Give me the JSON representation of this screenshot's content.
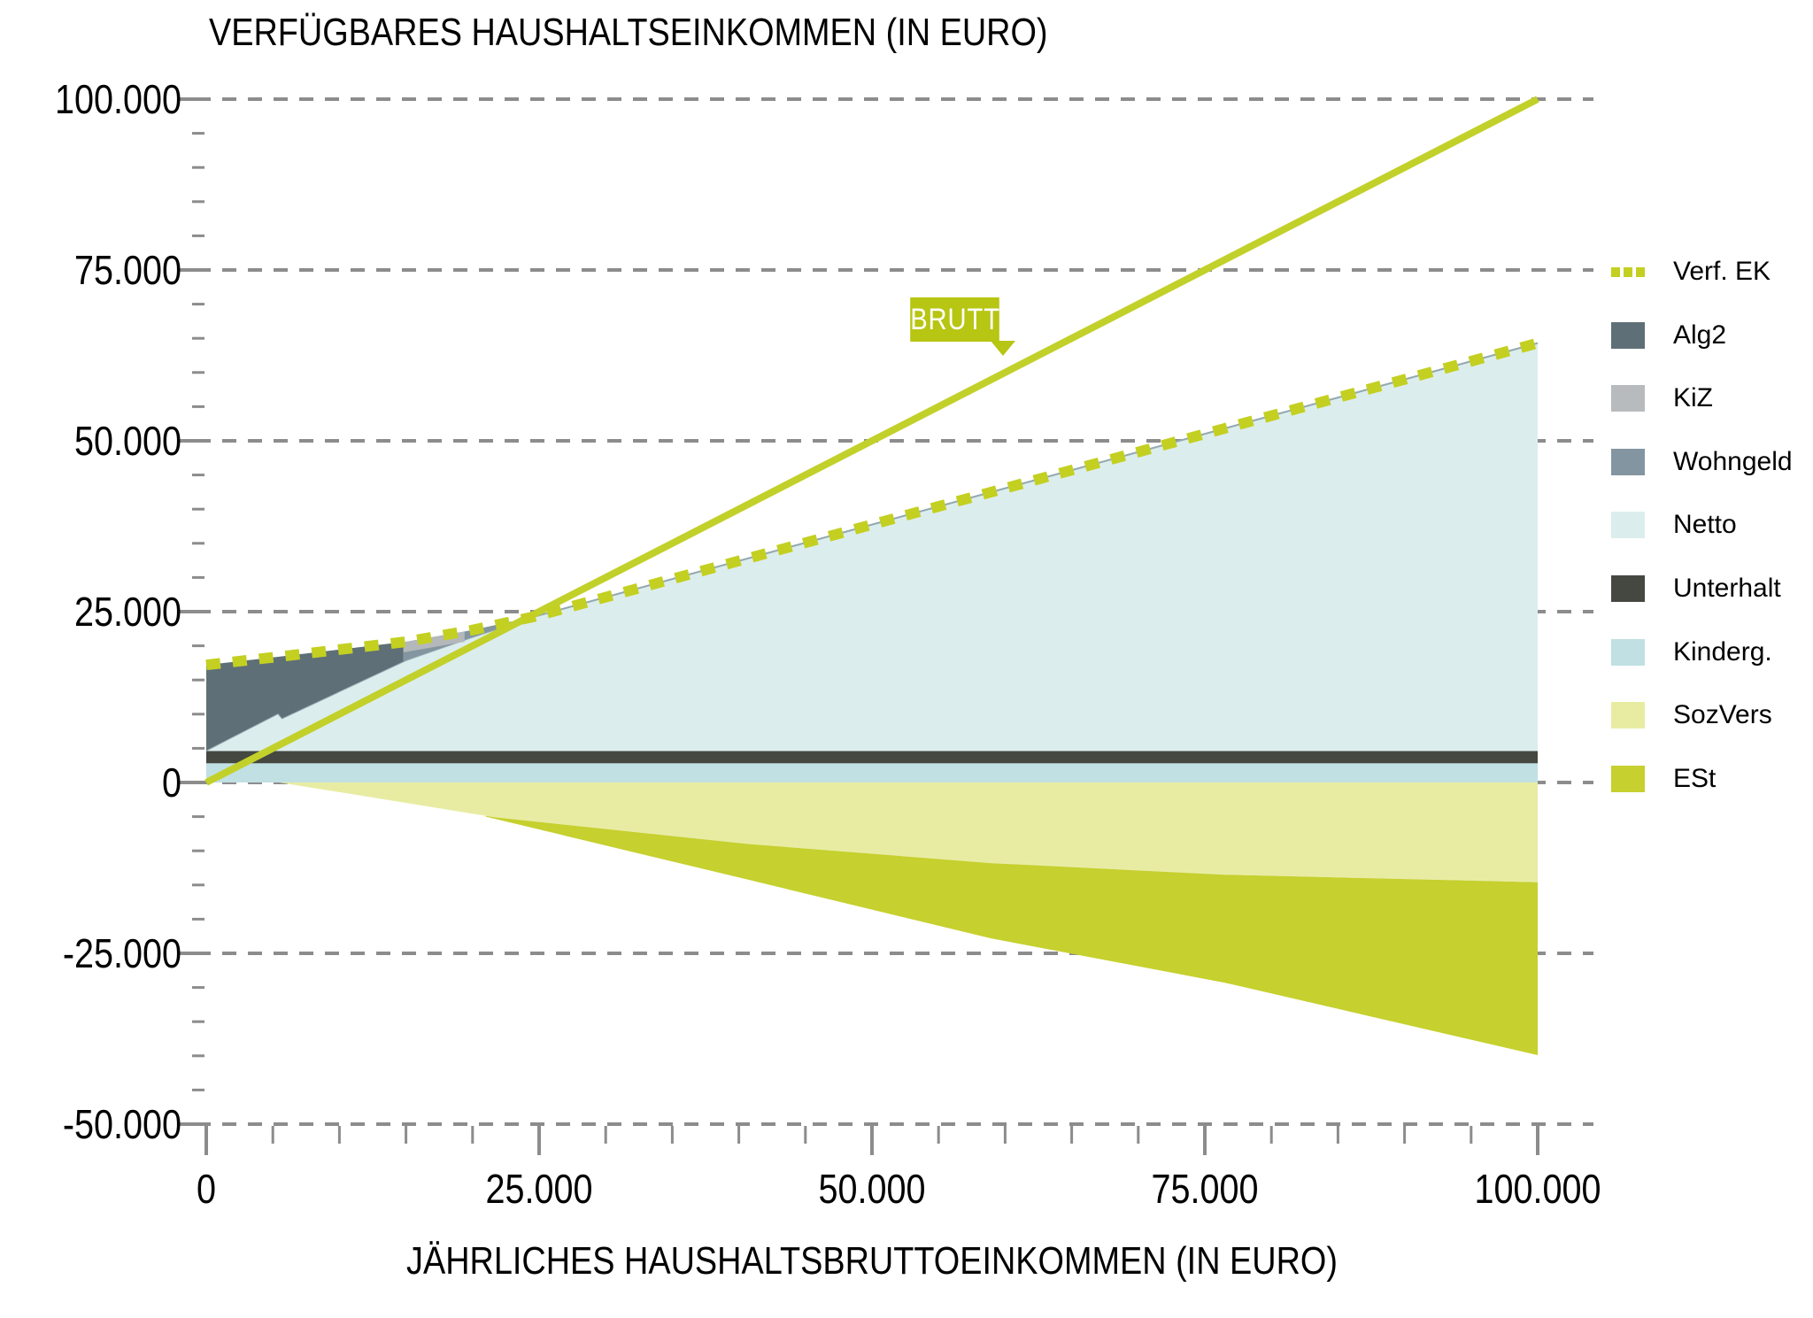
{
  "style": {
    "background": "#ffffff",
    "grid_color": "#8c8c8c",
    "tick_color": "#8c8c8c",
    "text_color": "#000000",
    "netto_edge_color": "#93a9b0"
  },
  "chart_data": {
    "type": "area",
    "title": "VERFÜGBARES HAUSHALTSEINKOMMEN (IN EURO)",
    "xlabel": "JÄHRLICHES HAUSHALTSBRUTTOEINKOMMEN (IN EURO)",
    "grid": "horizontal-dashed",
    "legend_position": "right",
    "x_axis": {
      "range": [
        0,
        100000
      ],
      "minor_step": 5000,
      "ticks": [
        {
          "value": 0,
          "label": "0"
        },
        {
          "value": 25000,
          "label": "25.000"
        },
        {
          "value": 50000,
          "label": "50.000"
        },
        {
          "value": 75000,
          "label": "75.000"
        },
        {
          "value": 100000,
          "label": "100.000"
        }
      ]
    },
    "y_axis": {
      "range": [
        -50000,
        100000
      ],
      "minor_step": 5000,
      "ticks": [
        {
          "value": 100000,
          "label": "100.000"
        },
        {
          "value": 75000,
          "label": "75.000"
        },
        {
          "value": 50000,
          "label": "50.000"
        },
        {
          "value": 25000,
          "label": "25.000"
        },
        {
          "value": 0,
          "label": "0"
        },
        {
          "value": -25000,
          "label": "-25.000"
        },
        {
          "value": -50000,
          "label": "-50.000"
        }
      ]
    },
    "annotations": {
      "brutto": {
        "text": "BRUTTO",
        "box_color": "#b7c513",
        "text_color": "#ffffff"
      }
    },
    "aux_lines": {
      "netto_top": [
        [
          0,
          4700
        ],
        [
          5400,
          10100
        ],
        [
          5700,
          9400
        ],
        [
          15000,
          17900
        ],
        [
          20000,
          21300
        ],
        [
          24700,
          24300
        ],
        [
          100000,
          64300
        ]
      ],
      "est_bottom": [
        [
          21000,
          -5000
        ],
        [
          40000,
          -13900
        ],
        [
          58900,
          -22800
        ],
        [
          76500,
          -29300
        ],
        [
          100000,
          -39900
        ]
      ]
    },
    "series": [
      {
        "id": "brutto",
        "name": "BRUTTO",
        "type": "line",
        "color": "#c2d02a",
        "width": 8,
        "points": [
          [
            0,
            0
          ],
          [
            100000,
            100000
          ]
        ]
      },
      {
        "id": "verf_ek",
        "name": "Verf. EK",
        "type": "dashed-line",
        "color": "#c3d021",
        "width": 12,
        "points": [
          [
            0,
            17200
          ],
          [
            5400,
            18400
          ],
          [
            15000,
            20600
          ],
          [
            20000,
            22300
          ],
          [
            24700,
            24300
          ],
          [
            100000,
            64300
          ]
        ]
      },
      {
        "id": "netto",
        "name": "Netto",
        "type": "area-to-zero",
        "color": "#dcedee",
        "points_ref": "netto_top"
      },
      {
        "id": "wohngeld",
        "name": "Wohngeld",
        "type": "area-between",
        "color": "#8395a0",
        "upper": "verf_ek",
        "lower": "netto_top",
        "x_range": [
          14800,
          24700
        ]
      },
      {
        "id": "kiz",
        "name": "KiZ",
        "type": "band-below",
        "color": "#b4b8bb",
        "upper": "verf_ek",
        "thickness": 1500,
        "x_range": [
          14800,
          19400
        ]
      },
      {
        "id": "alg2",
        "name": "Alg2",
        "type": "area-between",
        "color": "#5e6f77",
        "upper": "verf_ek",
        "lower": "netto_top",
        "x_range": [
          0,
          14800
        ]
      },
      {
        "id": "unterhalt",
        "name": "Unterhalt",
        "type": "hband",
        "color": "#454741",
        "y_range": [
          2800,
          4600
        ],
        "x_range": [
          0,
          100000
        ]
      },
      {
        "id": "kinderg",
        "name": "Kinderg.",
        "type": "hband",
        "color": "#c0e0e3",
        "y_range": [
          0,
          2800
        ],
        "x_range": [
          0,
          100000
        ]
      },
      {
        "id": "sozvers",
        "name": "SozVers",
        "type": "area-to-zero",
        "color": "#e8eca3",
        "points": [
          [
            5500,
            0
          ],
          [
            21700,
            -5100
          ],
          [
            40700,
            -9000
          ],
          [
            58900,
            -11800
          ],
          [
            76500,
            -13500
          ],
          [
            100000,
            -14600
          ]
        ]
      },
      {
        "id": "est",
        "name": "ESt",
        "type": "area-between",
        "color": "#c6d02e",
        "upper": "sozvers",
        "lower": "est_bottom",
        "x_range": [
          21000,
          100000
        ]
      }
    ],
    "legend": [
      {
        "id": "verf_ek",
        "label": "Verf. EK",
        "color": "#c3d021",
        "swatch": "dashed"
      },
      {
        "id": "alg2",
        "label": "Alg2",
        "color": "#5e6f77",
        "swatch": "solid"
      },
      {
        "id": "kiz",
        "label": "KiZ",
        "color": "#b7bbbe",
        "swatch": "solid"
      },
      {
        "id": "wohngeld",
        "label": "Wohngeld",
        "color": "#8395a0",
        "swatch": "solid"
      },
      {
        "id": "netto",
        "label": "Netto",
        "color": "#dcedee",
        "swatch": "solid"
      },
      {
        "id": "unterhalt",
        "label": "Unterhalt",
        "color": "#454741",
        "swatch": "solid"
      },
      {
        "id": "kinderg",
        "label": "Kinderg.",
        "color": "#c0e0e3",
        "swatch": "solid"
      },
      {
        "id": "sozvers",
        "label": "SozVers",
        "color": "#e8eca3",
        "swatch": "solid"
      },
      {
        "id": "est",
        "label": "ESt",
        "color": "#c6d02e",
        "swatch": "solid"
      }
    ]
  }
}
